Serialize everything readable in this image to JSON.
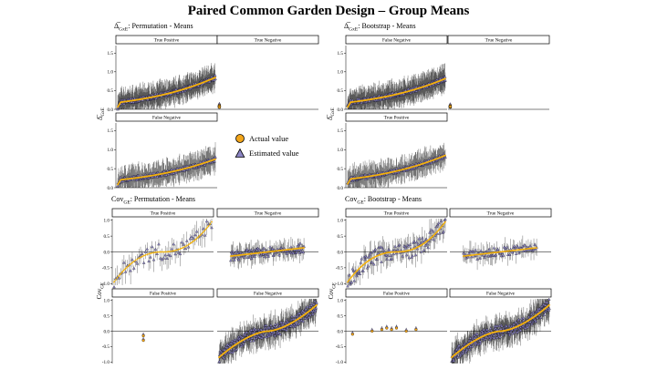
{
  "title": "Paired Common Garden Design – Group Means",
  "colors": {
    "actual": "#f2a51a",
    "estimated": "#8c85c4",
    "errorbar": "#000000",
    "trend": "#f2c000",
    "strip_border": "#000000"
  },
  "legend": {
    "actual_label": "Actual value",
    "estimated_label": "Estimated value"
  },
  "chart_data": [
    {
      "type": "scatter",
      "title_symbol": "Δ̅",
      "title_sub": "GxE",
      "title_rest": ": Permutation - Means",
      "ylabel_symbol": "Δ̅",
      "ylabel_sub": "GxE",
      "ylim": [
        0,
        1.7
      ],
      "yticks": [
        "0.0",
        "0.5",
        "1.0",
        "1.5"
      ],
      "yvals": [
        0,
        0.5,
        1.0,
        1.5
      ],
      "facets": [
        {
          "strip": "True Positive",
          "kind": "dense",
          "n": 320,
          "start": 0.18,
          "end": 0.85
        },
        {
          "strip": "True Negative",
          "kind": "flat",
          "n": 12
        },
        {
          "strip": "False Negative",
          "kind": "dense",
          "n": 220,
          "start": 0.2,
          "end": 0.75
        }
      ]
    },
    {
      "type": "scatter",
      "title_symbol": "Δ̅",
      "title_sub": "GxE",
      "title_rest": ": Bootstrap - Means",
      "ylabel_symbol": "Δ̅",
      "ylabel_sub": "GxE",
      "ylim": [
        0,
        1.7
      ],
      "yticks": [
        "0.0",
        "0.5",
        "1.0",
        "1.5"
      ],
      "yvals": [
        0,
        0.5,
        1.0,
        1.5
      ],
      "facets": [
        {
          "strip": "False Negative",
          "kind": "dense",
          "n": 320,
          "start": 0.18,
          "end": 0.82
        },
        {
          "strip": "True Negative",
          "kind": "flat",
          "n": 12
        },
        {
          "strip": "True Positive",
          "kind": "dense",
          "n": 220,
          "start": 0.22,
          "end": 0.85
        }
      ]
    },
    {
      "type": "scatter",
      "title_symbol": "Cov",
      "title_sub": "GE",
      "title_rest": ": Permutation - Means",
      "ylabel_symbol": "Cov",
      "ylabel_sub": "GE",
      "ylim": [
        -1.05,
        1.05
      ],
      "yticks": [
        "-1.0",
        "-0.5",
        "0.0",
        "0.5",
        "1.0"
      ],
      "yvals": [
        -1,
        -0.5,
        0,
        0.5,
        1
      ],
      "facets": [
        {
          "strip": "True Positive",
          "kind": "scurve",
          "n": 60
        },
        {
          "strip": "True Negative",
          "kind": "narrow",
          "n": 120
        },
        {
          "strip": "False Positive",
          "kind": "few",
          "points": [
            [
              0.3,
              -0.15
            ],
            [
              0.3,
              -0.3
            ]
          ]
        },
        {
          "strip": "False Negative",
          "kind": "widecurve",
          "n": 320
        }
      ]
    },
    {
      "type": "scatter",
      "title_symbol": "Cov",
      "title_sub": "GE",
      "title_rest": ": Bootstrap - Means",
      "ylabel_symbol": "Cov",
      "ylabel_sub": "GE",
      "ylim": [
        -1.05,
        1.05
      ],
      "yticks": [
        "-1.0",
        "-0.5",
        "0.0",
        "0.5",
        "1.0"
      ],
      "yvals": [
        -1,
        -0.5,
        0,
        0.5,
        1
      ],
      "facets": [
        {
          "strip": "True Positive",
          "kind": "scurve",
          "n": 120
        },
        {
          "strip": "True Negative",
          "kind": "narrow",
          "n": 80
        },
        {
          "strip": "False Positive",
          "kind": "few",
          "points": [
            [
              0.05,
              -0.1
            ],
            [
              0.25,
              0.0
            ],
            [
              0.35,
              0.05
            ],
            [
              0.4,
              0.1
            ],
            [
              0.45,
              0.05
            ],
            [
              0.5,
              0.1
            ],
            [
              0.6,
              0.0
            ],
            [
              0.7,
              0.05
            ]
          ]
        },
        {
          "strip": "False Negative",
          "kind": "widecurve",
          "n": 320
        }
      ]
    }
  ]
}
